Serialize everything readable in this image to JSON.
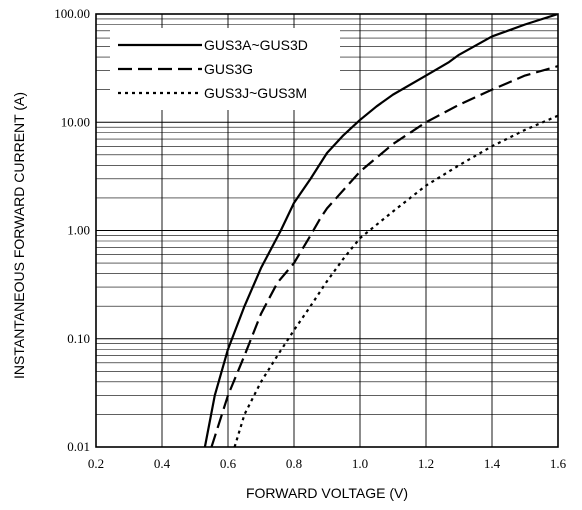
{
  "chart_data": {
    "type": "line",
    "xlabel": "FORWARD VOLTAGE (V)",
    "ylabel": "INSTANTANEOUS FORWARD CURRENT (A)",
    "xlim": [
      0.2,
      1.6
    ],
    "ylim": [
      0.01,
      100
    ],
    "y_scale": "log",
    "grid": true,
    "legend_position": "top-left",
    "x_ticks": [
      "0.2",
      "0.4",
      "0.6",
      "0.8",
      "1.0",
      "1.2",
      "1.4",
      "1.6"
    ],
    "y_ticks": [
      "0.01",
      "0.10",
      "1.00",
      "10.00",
      "100.00"
    ],
    "series": [
      {
        "name": "GUS3A~GUS3D",
        "style": "solid",
        "points": [
          [
            0.53,
            0.01
          ],
          [
            0.56,
            0.03
          ],
          [
            0.6,
            0.08
          ],
          [
            0.65,
            0.2
          ],
          [
            0.7,
            0.45
          ],
          [
            0.76,
            1.0
          ],
          [
            0.8,
            1.8
          ],
          [
            0.85,
            3.0
          ],
          [
            0.9,
            5.2
          ],
          [
            0.95,
            7.6
          ],
          [
            1.0,
            10.5
          ],
          [
            1.05,
            14
          ],
          [
            1.1,
            18
          ],
          [
            1.2,
            27
          ],
          [
            1.27,
            36
          ],
          [
            1.3,
            42
          ],
          [
            1.4,
            62
          ],
          [
            1.5,
            80
          ],
          [
            1.6,
            100
          ]
        ]
      },
      {
        "name": "GUS3G",
        "style": "dashed",
        "points": [
          [
            0.55,
            0.01
          ],
          [
            0.6,
            0.03
          ],
          [
            0.65,
            0.07
          ],
          [
            0.7,
            0.17
          ],
          [
            0.75,
            0.33
          ],
          [
            0.8,
            0.5
          ],
          [
            0.85,
            0.9
          ],
          [
            0.88,
            1.3
          ],
          [
            0.9,
            1.6
          ],
          [
            1.0,
            3.5
          ],
          [
            1.1,
            6.3
          ],
          [
            1.2,
            10
          ],
          [
            1.3,
            14.5
          ],
          [
            1.4,
            20
          ],
          [
            1.5,
            27
          ],
          [
            1.6,
            33
          ]
        ]
      },
      {
        "name": "GUS3J~GUS3M",
        "style": "dotted",
        "points": [
          [
            0.62,
            0.01
          ],
          [
            0.65,
            0.02
          ],
          [
            0.7,
            0.04
          ],
          [
            0.75,
            0.07
          ],
          [
            0.8,
            0.12
          ],
          [
            0.85,
            0.2
          ],
          [
            0.9,
            0.34
          ],
          [
            0.95,
            0.55
          ],
          [
            1.0,
            0.85
          ],
          [
            1.1,
            1.5
          ],
          [
            1.2,
            2.6
          ],
          [
            1.3,
            4.0
          ],
          [
            1.4,
            6.0
          ],
          [
            1.5,
            8.5
          ],
          [
            1.6,
            11.5
          ]
        ]
      }
    ]
  }
}
